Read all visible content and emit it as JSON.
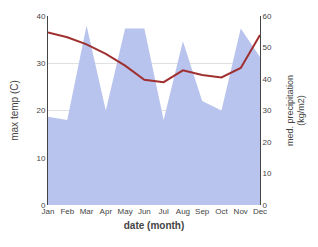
{
  "chart_data": {
    "type": "line",
    "xlabel": "date (month)",
    "ylabel": "max temp (C)",
    "y2label": "med. precipitation\n(kg/m2)",
    "categories": [
      "Jan",
      "Feb",
      "Mar",
      "Apr",
      "May",
      "Jun",
      "Jul",
      "Aug",
      "Sep",
      "Oct",
      "Nov",
      "Dec"
    ],
    "series": [
      {
        "type": "area",
        "axis": "y2",
        "color": "#b8c4ee",
        "values": [
          28.0,
          27.0,
          57.0,
          30.0,
          56.0,
          56.0,
          27.0,
          52.0,
          33.0,
          30.0,
          56.0,
          47.0
        ]
      },
      {
        "type": "line",
        "color": "#a03030",
        "values": [
          36.5,
          35.5,
          34.0,
          32.0,
          29.5,
          26.5,
          26.0,
          28.5,
          27.5,
          27.0,
          29.0,
          36.0
        ]
      }
    ],
    "ylim": [
      0,
      40
    ],
    "yticks": [
      0,
      10,
      20,
      30,
      40
    ],
    "y2lim": [
      0,
      60
    ],
    "y2ticks": [
      0,
      10,
      20,
      30,
      40,
      50,
      60
    ],
    "grid": true
  }
}
